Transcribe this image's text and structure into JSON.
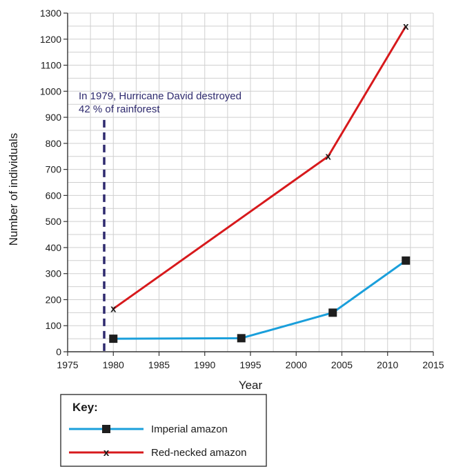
{
  "chart_data": {
    "type": "line",
    "xlabel": "Year",
    "ylabel": "Number of individuals",
    "xlim": [
      1975,
      2015
    ],
    "ylim": [
      0,
      1300
    ],
    "x_ticks": [
      1975,
      1980,
      1985,
      1990,
      1995,
      2000,
      2005,
      2010,
      2015
    ],
    "y_ticks": [
      0,
      100,
      200,
      300,
      400,
      500,
      600,
      700,
      800,
      900,
      1000,
      1100,
      1200,
      1300
    ],
    "grid": true,
    "series": [
      {
        "name": "Imperial amazon",
        "color": "#1a9fdb",
        "marker": "square",
        "x": [
          1980,
          1994,
          2004,
          2012
        ],
        "y": [
          50,
          52,
          150,
          350
        ]
      },
      {
        "name": "Red-necked amazon",
        "color": "#d7191c",
        "marker": "x",
        "x": [
          1980,
          2003.5,
          2012
        ],
        "y": [
          165,
          750,
          1250
        ]
      }
    ],
    "annotations": [
      {
        "lines": [
          "In 1979, Hurricane David destroyed",
          "42 % of rainforest"
        ],
        "x_line": 1979,
        "line_top_y": 890,
        "color": "#2e2a6e"
      }
    ],
    "legend": {
      "title": "Key:",
      "placement": "bottom-left"
    }
  }
}
